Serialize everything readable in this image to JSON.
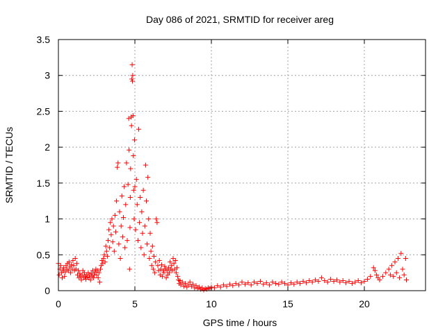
{
  "chart_data": {
    "type": "scatter",
    "title": "Day 086 of 2021, SRMTID for receiver areg",
    "xlabel": "GPS time / hours",
    "ylabel": "SRMTID / TECUs",
    "xlim": [
      0,
      24
    ],
    "ylim": [
      0,
      3.5
    ],
    "xticks": [
      0,
      5,
      10,
      15,
      20
    ],
    "xtick_labels": [
      "0",
      "5",
      "10",
      "15",
      "20"
    ],
    "yticks": [
      0,
      0.5,
      1,
      1.5,
      2,
      2.5,
      3,
      3.5
    ],
    "ytick_labels": [
      "0",
      "0.5",
      "1",
      "1.5",
      "2",
      "2.5",
      "3",
      "3.5"
    ],
    "grid": true,
    "marker": "+",
    "color": "#ff0000",
    "series": [
      {
        "name": "SRMTID",
        "points": [
          [
            0.0,
            0.38
          ],
          [
            0.05,
            0.22
          ],
          [
            0.1,
            0.3
          ],
          [
            0.15,
            0.35
          ],
          [
            0.2,
            0.25
          ],
          [
            0.25,
            0.18
          ],
          [
            0.3,
            0.28
          ],
          [
            0.35,
            0.32
          ],
          [
            0.4,
            0.2
          ],
          [
            0.45,
            0.26
          ],
          [
            0.5,
            0.35
          ],
          [
            0.55,
            0.3
          ],
          [
            0.6,
            0.38
          ],
          [
            0.65,
            0.28
          ],
          [
            0.7,
            0.4
          ],
          [
            0.75,
            0.33
          ],
          [
            0.8,
            0.25
          ],
          [
            0.85,
            0.36
          ],
          [
            0.9,
            0.3
          ],
          [
            0.95,
            0.42
          ],
          [
            1.0,
            0.35
          ],
          [
            1.05,
            0.28
          ],
          [
            1.1,
            0.45
          ],
          [
            1.15,
            0.3
          ],
          [
            1.2,
            0.38
          ],
          [
            1.25,
            0.22
          ],
          [
            1.3,
            0.28
          ],
          [
            1.35,
            0.18
          ],
          [
            1.4,
            0.24
          ],
          [
            1.45,
            0.2
          ],
          [
            1.5,
            0.15
          ],
          [
            1.55,
            0.22
          ],
          [
            1.6,
            0.28
          ],
          [
            1.65,
            0.18
          ],
          [
            1.7,
            0.25
          ],
          [
            1.75,
            0.2
          ],
          [
            1.8,
            0.16
          ],
          [
            1.85,
            0.22
          ],
          [
            1.9,
            0.19
          ],
          [
            1.95,
            0.25
          ],
          [
            2.0,
            0.18
          ],
          [
            2.05,
            0.22
          ],
          [
            2.1,
            0.15
          ],
          [
            2.15,
            0.24
          ],
          [
            2.2,
            0.2
          ],
          [
            2.25,
            0.28
          ],
          [
            2.3,
            0.18
          ],
          [
            2.35,
            0.22
          ],
          [
            2.4,
            0.26
          ],
          [
            2.45,
            0.3
          ],
          [
            2.5,
            0.22
          ],
          [
            2.55,
            0.28
          ],
          [
            2.6,
            0.18
          ],
          [
            2.65,
            0.25
          ],
          [
            2.7,
            0.12
          ],
          [
            2.75,
            0.3
          ],
          [
            2.8,
            0.35
          ],
          [
            2.85,
            0.42
          ],
          [
            2.9,
            0.38
          ],
          [
            2.95,
            0.45
          ],
          [
            3.0,
            0.5
          ],
          [
            3.05,
            0.4
          ],
          [
            3.1,
            0.62
          ],
          [
            3.15,
            0.55
          ],
          [
            3.2,
            0.48
          ],
          [
            3.25,
            0.7
          ],
          [
            3.3,
            0.85
          ],
          [
            3.35,
            0.6
          ],
          [
            3.4,
            0.95
          ],
          [
            3.45,
            0.78
          ],
          [
            3.5,
            1.0
          ],
          [
            3.55,
            0.68
          ],
          [
            3.6,
            0.9
          ],
          [
            3.65,
            0.55
          ],
          [
            3.7,
            1.05
          ],
          [
            3.75,
            0.82
          ],
          [
            3.8,
            1.25
          ],
          [
            3.85,
            1.72
          ],
          [
            3.9,
            1.78
          ],
          [
            3.95,
            0.65
          ],
          [
            4.0,
            1.1
          ],
          [
            4.05,
            0.45
          ],
          [
            4.1,
            0.9
          ],
          [
            4.15,
            1.32
          ],
          [
            4.2,
            0.75
          ],
          [
            4.25,
            1.02
          ],
          [
            4.3,
            1.45
          ],
          [
            4.35,
            0.6
          ],
          [
            4.4,
            1.2
          ],
          [
            4.45,
            1.78
          ],
          [
            4.5,
            0.7
          ],
          [
            4.55,
            1.48
          ],
          [
            4.6,
            2.4
          ],
          [
            4.62,
            1.96
          ],
          [
            4.65,
            0.3
          ],
          [
            4.68,
            0.88
          ],
          [
            4.7,
            1.3
          ],
          [
            4.72,
            1.7
          ],
          [
            4.75,
            2.42
          ],
          [
            4.78,
            2.3
          ],
          [
            4.8,
            2.95
          ],
          [
            4.82,
            3.15
          ],
          [
            4.84,
            2.92
          ],
          [
            4.86,
            3.0
          ],
          [
            4.88,
            2.44
          ],
          [
            4.9,
            1.88
          ],
          [
            4.92,
            1.4
          ],
          [
            4.95,
            1.0
          ],
          [
            4.98,
            2.1
          ],
          [
            5.0,
            1.45
          ],
          [
            5.05,
            0.85
          ],
          [
            5.1,
            1.55
          ],
          [
            5.15,
            1.2
          ],
          [
            5.2,
            0.7
          ],
          [
            5.25,
            2.25
          ],
          [
            5.3,
            0.95
          ],
          [
            5.35,
            1.3
          ],
          [
            5.4,
            0.6
          ],
          [
            5.45,
            1.1
          ],
          [
            5.5,
            0.8
          ],
          [
            5.55,
            1.4
          ],
          [
            5.6,
            0.5
          ],
          [
            5.65,
            0.9
          ],
          [
            5.7,
            1.75
          ],
          [
            5.75,
            1.25
          ],
          [
            5.8,
            0.65
          ],
          [
            5.85,
            1.58
          ],
          [
            5.9,
            1.0
          ],
          [
            5.95,
            0.45
          ],
          [
            6.0,
            0.8
          ],
          [
            6.05,
            0.55
          ],
          [
            6.1,
            0.35
          ],
          [
            6.15,
            0.62
          ],
          [
            6.2,
            0.3
          ],
          [
            6.25,
            0.48
          ],
          [
            6.3,
            0.25
          ],
          [
            6.35,
            0.4
          ],
          [
            6.4,
            1.0
          ],
          [
            6.45,
            0.95
          ],
          [
            6.5,
            0.35
          ],
          [
            6.55,
            0.28
          ],
          [
            6.6,
            0.42
          ],
          [
            6.65,
            0.22
          ],
          [
            6.7,
            0.3
          ],
          [
            6.75,
            0.36
          ],
          [
            6.8,
            0.2
          ],
          [
            6.85,
            0.28
          ],
          [
            6.9,
            0.25
          ],
          [
            6.95,
            0.34
          ],
          [
            7.0,
            0.3
          ],
          [
            7.05,
            0.18
          ],
          [
            7.1,
            0.28
          ],
          [
            7.15,
            0.22
          ],
          [
            7.2,
            0.32
          ],
          [
            7.25,
            0.25
          ],
          [
            7.3,
            0.4
          ],
          [
            7.35,
            0.3
          ],
          [
            7.4,
            0.35
          ],
          [
            7.45,
            0.28
          ],
          [
            7.5,
            0.45
          ],
          [
            7.55,
            0.38
          ],
          [
            7.6,
            0.3
          ],
          [
            7.65,
            0.42
          ],
          [
            7.7,
            0.25
          ],
          [
            7.75,
            0.32
          ],
          [
            7.8,
            0.2
          ],
          [
            7.85,
            0.15
          ],
          [
            7.9,
            0.1
          ],
          [
            7.95,
            0.14
          ],
          [
            8.0,
            0.08
          ],
          [
            8.1,
            0.12
          ],
          [
            8.2,
            0.06
          ],
          [
            8.3,
            0.1
          ],
          [
            8.4,
            0.05
          ],
          [
            8.5,
            0.08
          ],
          [
            8.6,
            0.12
          ],
          [
            8.7,
            0.06
          ],
          [
            8.8,
            0.09
          ],
          [
            8.9,
            0.04
          ],
          [
            9.0,
            0.07
          ],
          [
            9.1,
            0.03
          ],
          [
            9.2,
            0.05
          ],
          [
            9.3,
            0.02
          ],
          [
            9.4,
            0.04
          ],
          [
            9.5,
            0.01
          ],
          [
            9.6,
            0.03
          ],
          [
            9.7,
            0.02
          ],
          [
            9.8,
            0.04
          ],
          [
            9.9,
            0.03
          ],
          [
            10.0,
            0.05
          ],
          [
            10.2,
            0.04
          ],
          [
            10.4,
            0.07
          ],
          [
            10.6,
            0.05
          ],
          [
            10.8,
            0.08
          ],
          [
            11.0,
            0.06
          ],
          [
            11.2,
            0.09
          ],
          [
            11.4,
            0.07
          ],
          [
            11.6,
            0.1
          ],
          [
            11.8,
            0.08
          ],
          [
            12.0,
            0.12
          ],
          [
            12.2,
            0.09
          ],
          [
            12.4,
            0.11
          ],
          [
            12.6,
            0.08
          ],
          [
            12.8,
            0.12
          ],
          [
            13.0,
            0.1
          ],
          [
            13.2,
            0.13
          ],
          [
            13.4,
            0.09
          ],
          [
            13.6,
            0.11
          ],
          [
            13.8,
            0.08
          ],
          [
            14.0,
            0.12
          ],
          [
            14.2,
            0.1
          ],
          [
            14.4,
            0.09
          ],
          [
            14.6,
            0.12
          ],
          [
            14.8,
            0.1
          ],
          [
            15.0,
            0.08
          ],
          [
            15.2,
            0.11
          ],
          [
            15.4,
            0.09
          ],
          [
            15.6,
            0.12
          ],
          [
            15.8,
            0.1
          ],
          [
            16.0,
            0.13
          ],
          [
            16.2,
            0.11
          ],
          [
            16.4,
            0.14
          ],
          [
            16.6,
            0.12
          ],
          [
            16.8,
            0.15
          ],
          [
            17.0,
            0.13
          ],
          [
            17.2,
            0.18
          ],
          [
            17.4,
            0.14
          ],
          [
            17.6,
            0.12
          ],
          [
            17.8,
            0.16
          ],
          [
            18.0,
            0.13
          ],
          [
            18.2,
            0.15
          ],
          [
            18.4,
            0.12
          ],
          [
            18.6,
            0.14
          ],
          [
            18.8,
            0.11
          ],
          [
            19.0,
            0.13
          ],
          [
            19.2,
            0.1
          ],
          [
            19.4,
            0.12
          ],
          [
            19.6,
            0.14
          ],
          [
            19.8,
            0.11
          ],
          [
            20.0,
            0.13
          ],
          [
            20.2,
            0.16
          ],
          [
            20.4,
            0.2
          ],
          [
            20.6,
            0.32
          ],
          [
            20.7,
            0.28
          ],
          [
            20.8,
            0.22
          ],
          [
            20.9,
            0.18
          ],
          [
            21.0,
            0.15
          ],
          [
            21.2,
            0.2
          ],
          [
            21.4,
            0.25
          ],
          [
            21.6,
            0.3
          ],
          [
            21.7,
            0.22
          ],
          [
            21.8,
            0.35
          ],
          [
            21.9,
            0.2
          ],
          [
            22.0,
            0.4
          ],
          [
            22.1,
            0.25
          ],
          [
            22.2,
            0.45
          ],
          [
            22.3,
            0.18
          ],
          [
            22.4,
            0.52
          ],
          [
            22.5,
            0.3
          ],
          [
            22.6,
            0.22
          ],
          [
            22.7,
            0.45
          ],
          [
            22.75,
            0.15
          ]
        ]
      }
    ]
  }
}
